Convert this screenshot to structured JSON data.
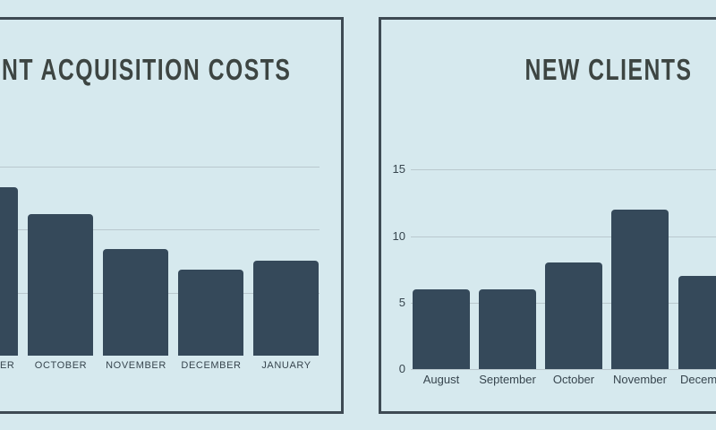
{
  "theme": {
    "background": "#d6e9ee",
    "panel_border": "#3e4a53",
    "bar_color": "#35495a",
    "gridline_color": "#b9c8ce",
    "title_color": "#3d4542",
    "axis_label_color": "#37454e"
  },
  "chart_data": [
    {
      "type": "bar",
      "title": "NT ACQUISITION COSTS",
      "categories": [
        "ER",
        "OCTOBER",
        "NOVEMBER",
        "DECEMBER",
        "JANUARY"
      ],
      "values": [
        2.67,
        2.25,
        1.69,
        1.36,
        1.5
      ],
      "value_scale": "gridline units; y-axis tick labels not visible (chart clipped at left screen edge)",
      "yticks": [],
      "gridlines_at": [
        1,
        2,
        3
      ],
      "ylim": [
        0,
        3.2
      ],
      "xlabel": "",
      "ylabel": "",
      "grid": true,
      "legend": false
    },
    {
      "type": "bar",
      "title": "NEW CLIENTS",
      "categories": [
        "August",
        "September",
        "October",
        "November",
        "December"
      ],
      "values": [
        6,
        6,
        8,
        12,
        7
      ],
      "yticks": [
        0,
        5,
        10,
        15
      ],
      "gridlines_at": [
        0,
        5,
        10,
        15
      ],
      "ylim": [
        0,
        16
      ],
      "xlabel": "",
      "ylabel": "",
      "grid": true,
      "legend": false
    }
  ]
}
